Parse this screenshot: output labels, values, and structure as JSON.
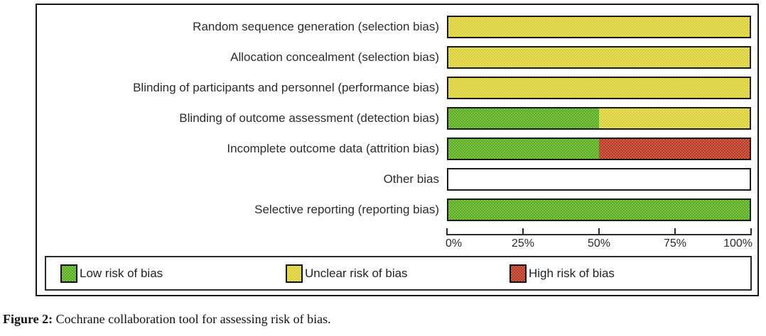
{
  "chart_data": {
    "type": "bar",
    "orientation": "horizontal-stacked",
    "unit": "percent",
    "title": "",
    "categories": [
      "Random sequence generation (selection bias)",
      "Allocation concealment (selection bias)",
      "Blinding of participants and personnel (performance bias)",
      "Blinding of outcome assessment (detection bias)",
      "Incomplete outcome data (attrition bias)",
      "Other bias",
      "Selective reporting (reporting bias)"
    ],
    "series": [
      {
        "name": "Low risk of bias",
        "color": "#5cb41e",
        "values": [
          0,
          0,
          0,
          50,
          50,
          0,
          100
        ]
      },
      {
        "name": "Unclear risk of bias",
        "color": "#e3d83a",
        "values": [
          100,
          100,
          100,
          50,
          0,
          0,
          0
        ]
      },
      {
        "name": "High risk of bias",
        "color": "#c13b24",
        "values": [
          0,
          0,
          0,
          0,
          50,
          0,
          0
        ]
      }
    ],
    "xlim": [
      0,
      100
    ],
    "x_ticks": [
      "0%",
      "25%",
      "50%",
      "75%",
      "100%"
    ],
    "grid": false,
    "legend_position": "bottom-box"
  },
  "legend": {
    "items": [
      {
        "label": "Low risk of bias",
        "color": "#5cb41e"
      },
      {
        "label": "Unclear risk of bias",
        "color": "#e3d83a"
      },
      {
        "label": "High risk of bias",
        "color": "#c13b24"
      }
    ]
  },
  "caption": {
    "label": "Figure 2:",
    "text": " Cochrane collaboration tool for assessing risk of bias."
  }
}
